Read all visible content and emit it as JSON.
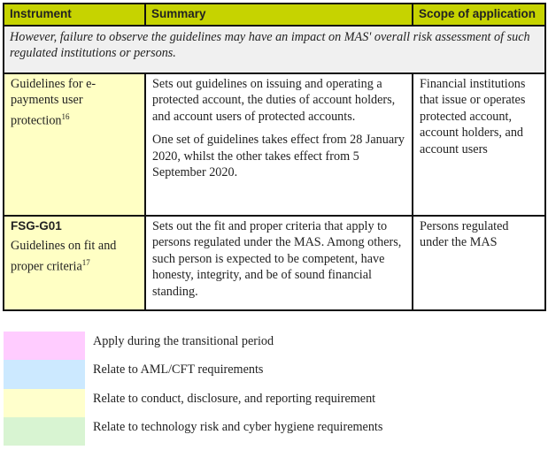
{
  "table": {
    "headers": [
      "Instrument",
      "Summary",
      "Scope of application"
    ],
    "note": "However, failure to observe the guidelines may have an impact on MAS' overall risk assessment of such regulated institutions or persons.",
    "rows": [
      {
        "code": "",
        "instrument": "Guidelines for e-payments user protection",
        "footnote": "16",
        "summary": [
          "Sets out guidelines on issuing and operating a protected account, the duties of account holders, and account users of protected accounts.",
          "One set of guidelines takes effect from 28 January 2020, whilst the other takes effect from 5 September 2020."
        ],
        "scope": "Financial institutions that issue or operates protected account, account holders, and account users"
      },
      {
        "code": "FSG-G01",
        "instrument": "Guidelines on fit and proper criteria",
        "footnote": "17",
        "summary": [
          "Sets out the fit and proper criteria that apply to persons regulated under the MAS. Among others, such person is expected to be competent, have honesty, integrity, and be of sound financial standing."
        ],
        "scope": "Persons regulated under the MAS"
      }
    ]
  },
  "legend": [
    {
      "label": "Apply during the transitional period",
      "color": "#ffccff"
    },
    {
      "label": "Relate to AML/CFT requirements",
      "color": "#cce9ff"
    },
    {
      "label": "Relate to conduct, disclosure, and reporting requirement",
      "color": "#ffffcc"
    },
    {
      "label": "Relate to technology risk and cyber hygiene requirements",
      "color": "#d8f4d2"
    }
  ]
}
